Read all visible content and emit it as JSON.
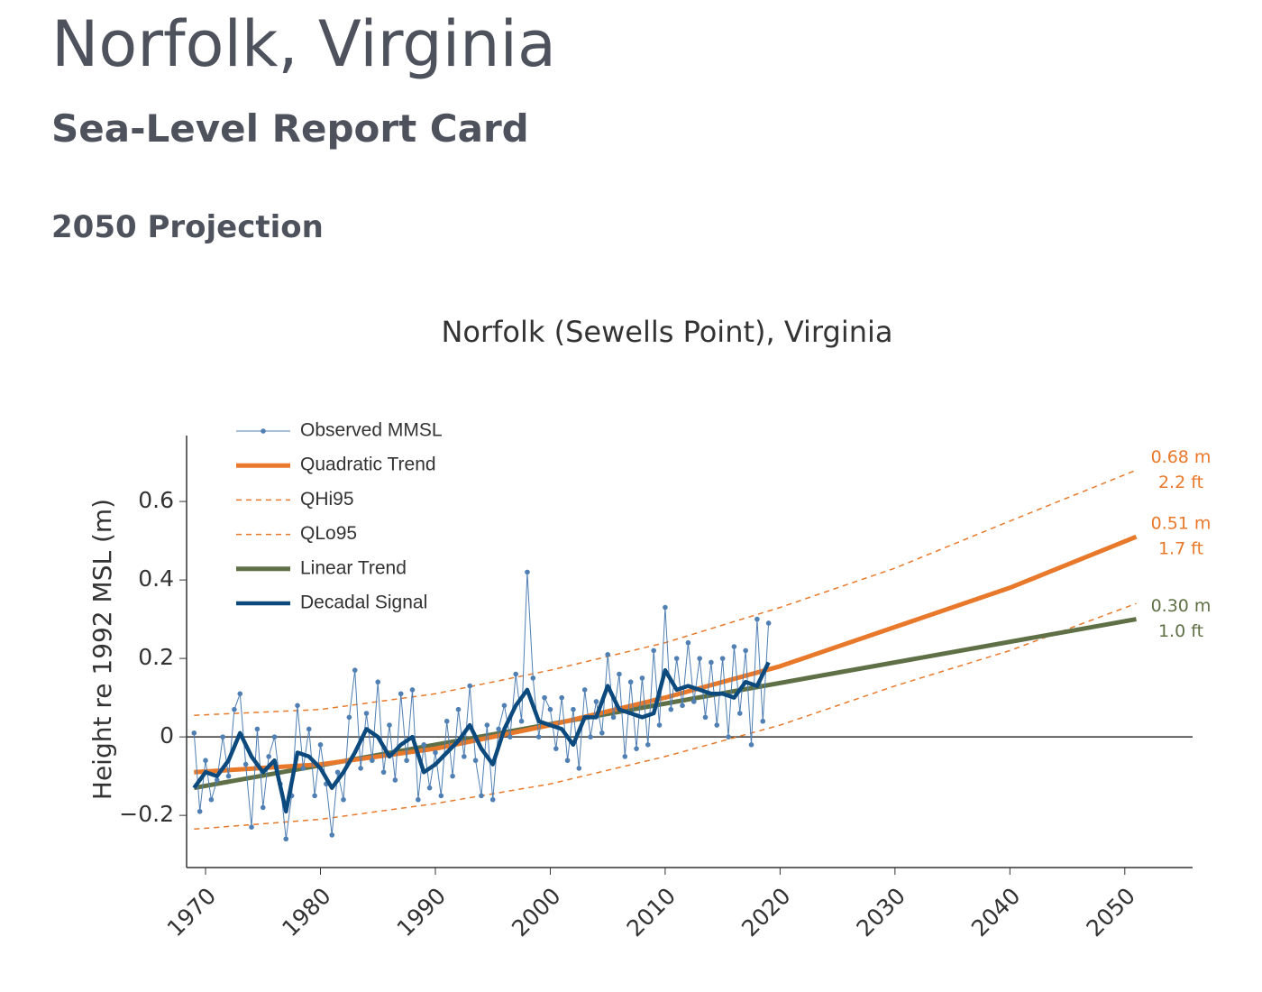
{
  "header": {
    "title": "Norfolk, Virginia",
    "subtitle": "Sea-Level Report Card",
    "section": "2050 Projection"
  },
  "chart_data": {
    "type": "line",
    "title": "Norfolk (Sewells Point), Virginia",
    "y_label": "Height re 1992 MSL (m)",
    "xlim": [
      1968.35,
      2055.9
    ],
    "xticks": [
      1970,
      1980,
      1990,
      2000,
      2010,
      2020,
      2030,
      2040,
      2050
    ],
    "ylim": [
      -0.333,
      0.768
    ],
    "yticks": [
      {
        "value": -0.2,
        "label": "−0.2"
      },
      0,
      0.2,
      0.4,
      0.6
    ],
    "zeroline": true,
    "legend": "upper-left",
    "series": [
      {
        "name": "Observed MMSL",
        "color": "#4f7fb3",
        "markers": true,
        "width": 1,
        "x": [
          1969,
          1969.5,
          1970,
          1970.5,
          1971,
          1971.5,
          1972,
          1972.5,
          1973,
          1973.5,
          1974,
          1974.5,
          1975,
          1975.5,
          1976,
          1976.5,
          1977,
          1977.5,
          1978,
          1978.5,
          1979,
          1979.5,
          1980,
          1980.5,
          1981,
          1981.5,
          1982,
          1982.5,
          1983,
          1983.5,
          1984,
          1984.5,
          1985,
          1985.5,
          1986,
          1986.5,
          1987,
          1987.5,
          1988,
          1988.5,
          1989,
          1989.5,
          1990,
          1990.5,
          1991,
          1991.5,
          1992,
          1992.5,
          1993,
          1993.5,
          1994,
          1994.5,
          1995,
          1995.5,
          1996,
          1996.5,
          1997,
          1997.5,
          1998,
          1998.5,
          1999,
          1999.5,
          2000,
          2000.5,
          2001,
          2001.5,
          2002,
          2002.5,
          2003,
          2003.5,
          2004,
          2004.5,
          2005,
          2005.5,
          2006,
          2006.5,
          2007,
          2007.5,
          2008,
          2008.5,
          2009,
          2009.5,
          2010,
          2010.5,
          2011,
          2011.5,
          2012,
          2012.5,
          2013,
          2013.5,
          2014,
          2014.5,
          2015,
          2015.5,
          2016,
          2016.5,
          2017,
          2017.5,
          2018,
          2018.5,
          2019
        ],
        "values": [
          0.01,
          -0.19,
          -0.06,
          -0.16,
          -0.11,
          0.0,
          -0.1,
          0.07,
          0.11,
          -0.07,
          -0.23,
          0.02,
          -0.18,
          -0.05,
          0.0,
          -0.12,
          -0.26,
          -0.15,
          0.08,
          -0.08,
          0.02,
          -0.15,
          -0.02,
          -0.12,
          -0.25,
          -0.09,
          -0.16,
          0.05,
          0.17,
          -0.08,
          0.06,
          -0.06,
          0.14,
          -0.09,
          0.03,
          -0.11,
          0.11,
          -0.06,
          0.12,
          -0.16,
          -0.02,
          -0.13,
          -0.04,
          -0.15,
          0.04,
          -0.1,
          0.07,
          -0.05,
          0.13,
          -0.06,
          -0.15,
          0.03,
          -0.16,
          0.02,
          0.08,
          0.0,
          0.16,
          0.04,
          0.42,
          0.15,
          0.0,
          0.1,
          0.07,
          -0.03,
          0.1,
          -0.06,
          0.07,
          -0.08,
          0.12,
          0.0,
          0.09,
          0.01,
          0.21,
          0.05,
          0.16,
          -0.05,
          0.14,
          -0.03,
          0.15,
          -0.02,
          0.22,
          0.03,
          0.33,
          0.07,
          0.2,
          0.08,
          0.24,
          0.09,
          0.2,
          0.05,
          0.19,
          0.03,
          0.2,
          0.0,
          0.23,
          0.06,
          0.22,
          -0.02,
          0.3,
          0.04,
          0.29
        ]
      },
      {
        "name": "Quadratic Trend",
        "color": "#e8792b",
        "width": 5,
        "x": [
          1969,
          1980,
          1990,
          2000,
          2010,
          2020,
          2030,
          2040,
          2051
        ],
        "values": [
          -0.09,
          -0.07,
          -0.03,
          0.03,
          0.1,
          0.18,
          0.28,
          0.38,
          0.51
        ],
        "end_label": [
          "0.51 m",
          "1.7 ft"
        ]
      },
      {
        "name": "QHi95",
        "color": "#e8792b",
        "dash": true,
        "width": 1.5,
        "x": [
          1969,
          1980,
          1990,
          2000,
          2010,
          2020,
          2030,
          2040,
          2051
        ],
        "values": [
          0.055,
          0.07,
          0.11,
          0.17,
          0.24,
          0.33,
          0.43,
          0.55,
          0.68
        ],
        "end_label": [
          "0.68 m",
          "2.2 ft"
        ]
      },
      {
        "name": "QLo95",
        "color": "#e8792b",
        "dash": true,
        "width": 1.5,
        "x": [
          1969,
          1980,
          1990,
          2000,
          2010,
          2020,
          2030,
          2040,
          2051
        ],
        "values": [
          -0.235,
          -0.21,
          -0.17,
          -0.12,
          -0.05,
          0.03,
          0.13,
          0.22,
          0.34
        ]
      },
      {
        "name": "Linear Trend",
        "color": "#5f7046",
        "width": 5,
        "x": [
          1969,
          2051
        ],
        "values": [
          -0.13,
          0.3
        ],
        "end_label": [
          "0.30 m",
          "1.0 ft"
        ]
      },
      {
        "name": "Decadal Signal",
        "color": "#0c4a7e",
        "width": 4.5,
        "x": [
          1969,
          1970,
          1971,
          1972,
          1973,
          1974,
          1975,
          1976,
          1977,
          1978,
          1979,
          1980,
          1981,
          1982,
          1983,
          1984,
          1985,
          1986,
          1987,
          1988,
          1989,
          1990,
          1991,
          1992,
          1993,
          1994,
          1995,
          1996,
          1997,
          1998,
          1999,
          2000,
          2001,
          2002,
          2003,
          2004,
          2005,
          2006,
          2007,
          2008,
          2009,
          2010,
          2011,
          2012,
          2013,
          2014,
          2015,
          2016,
          2017,
          2018,
          2019
        ],
        "values": [
          -0.13,
          -0.09,
          -0.1,
          -0.06,
          0.01,
          -0.05,
          -0.09,
          -0.06,
          -0.19,
          -0.04,
          -0.05,
          -0.08,
          -0.13,
          -0.09,
          -0.04,
          0.02,
          0.0,
          -0.05,
          -0.02,
          0.0,
          -0.09,
          -0.07,
          -0.04,
          -0.01,
          0.03,
          -0.03,
          -0.07,
          0.02,
          0.08,
          0.12,
          0.04,
          0.03,
          0.02,
          -0.02,
          0.05,
          0.05,
          0.13,
          0.07,
          0.06,
          0.05,
          0.06,
          0.17,
          0.12,
          0.13,
          0.12,
          0.11,
          0.11,
          0.1,
          0.14,
          0.13,
          0.19
        ]
      }
    ]
  }
}
